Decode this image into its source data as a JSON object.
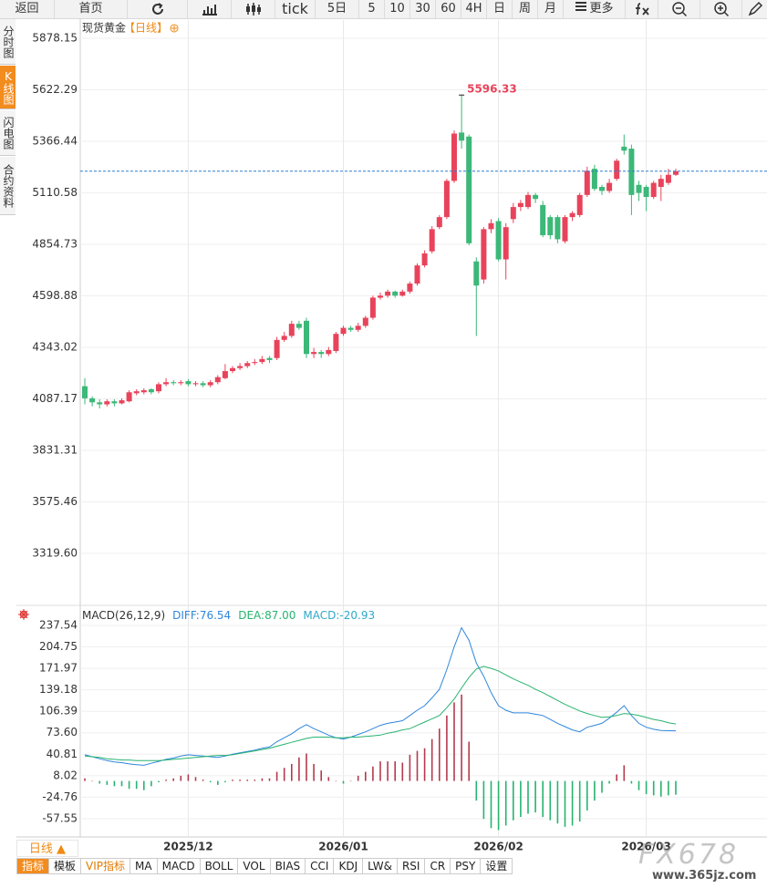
{
  "toolbar": [
    "返回",
    "首页",
    "tick",
    "5日",
    "5",
    "10",
    "30",
    "60",
    "4H",
    "日",
    "周",
    "月",
    "更多"
  ],
  "sidebar": [
    "分时图",
    "K线图",
    "闪电图",
    "合约资料"
  ],
  "period_button": "日线 ▲",
  "indicator_tabs": [
    "指标",
    "模板",
    "VIP指标",
    "MA",
    "MACD",
    "BOLL",
    "VOL",
    "BIAS",
    "CCI",
    "KDJ",
    "LW&",
    "RSI",
    "CR",
    "PSY",
    "设置"
  ],
  "watermark": [
    "FX678",
    "www.365jz.com"
  ],
  "chart_data": [
    {
      "type": "candlestick",
      "title": "现货黄金",
      "subtitle": "【日线】",
      "categories": [
        null,
        null,
        null,
        null,
        null,
        null,
        null,
        null,
        null,
        null,
        null,
        null,
        null,
        null,
        "2025/12",
        null,
        null,
        null,
        null,
        null,
        null,
        null,
        null,
        null,
        null,
        null,
        null,
        null,
        null,
        null,
        null,
        null,
        null,
        null,
        null,
        "2026/01",
        null,
        null,
        null,
        null,
        null,
        null,
        null,
        null,
        null,
        null,
        null,
        null,
        null,
        null,
        null,
        null,
        null,
        null,
        null,
        null,
        "2026/02",
        null,
        null,
        null,
        null,
        null,
        null,
        null,
        null,
        null,
        null,
        null,
        null,
        null,
        null,
        null,
        null,
        null,
        null,
        null,
        "2026/03",
        null,
        null,
        null,
        null
      ],
      "open": [
        4150,
        4090,
        4070,
        4060,
        4075,
        4065,
        4075,
        4115,
        4120,
        4135,
        4125,
        4160,
        4170,
        4165,
        4175,
        4160,
        4165,
        4155,
        4170,
        4190,
        4225,
        4240,
        4250,
        4265,
        4270,
        4290,
        4290,
        4380,
        4400,
        4460,
        4475,
        4310,
        4320,
        4310,
        4325,
        4410,
        4440,
        4430,
        4450,
        4490,
        4590,
        4600,
        4620,
        4600,
        4620,
        4660,
        4750,
        4820,
        4940,
        4990,
        5170,
        5410,
        5390,
        4770,
        4680,
        4930,
        4970,
        4780,
        4980,
        5040,
        5040,
        5100,
        5050,
        4990,
        4990,
        4870,
        4990,
        5000,
        5100,
        5230,
        5140,
        5120,
        5180,
        5340,
        5330,
        5150,
        5140,
        5090,
        5140,
        5160,
        5200
      ],
      "high": [
        4190,
        4100,
        4085,
        4085,
        4085,
        4090,
        4130,
        4135,
        4140,
        4140,
        4170,
        4190,
        4180,
        4180,
        4185,
        4175,
        4175,
        4180,
        4205,
        4260,
        4250,
        4265,
        4275,
        4285,
        4300,
        4300,
        4395,
        4420,
        4475,
        4475,
        4490,
        4340,
        4330,
        4345,
        4420,
        4450,
        4450,
        4465,
        4500,
        4600,
        4615,
        4630,
        4625,
        4630,
        4670,
        4760,
        4825,
        4945,
        5000,
        5180,
        5420,
        5596.33,
        5400,
        4790,
        4940,
        4980,
        4985,
        4960,
        5060,
        5075,
        5115,
        5110,
        5070,
        5000,
        5000,
        5000,
        5020,
        5110,
        5240,
        5250,
        5150,
        5180,
        5280,
        5400,
        5350,
        5170,
        5150,
        5170,
        5200,
        5230,
        5230
      ],
      "low": [
        4060,
        4050,
        4040,
        4050,
        4050,
        4060,
        4070,
        4105,
        4110,
        4110,
        4115,
        4150,
        4155,
        4155,
        4150,
        4150,
        4145,
        4145,
        4160,
        4185,
        4215,
        4230,
        4240,
        4255,
        4260,
        4265,
        4280,
        4370,
        4390,
        4430,
        4290,
        4290,
        4290,
        4300,
        4315,
        4400,
        4420,
        4420,
        4440,
        4480,
        4580,
        4590,
        4590,
        4595,
        4610,
        4650,
        4740,
        4810,
        4930,
        4980,
        5160,
        5330,
        4850,
        4400,
        4660,
        4910,
        4770,
        4680,
        4960,
        5020,
        5030,
        5060,
        4890,
        4880,
        4860,
        4860,
        4970,
        4990,
        5090,
        5120,
        5100,
        5110,
        5170,
        5300,
        5000,
        5070,
        5020,
        5080,
        5070,
        5150,
        5195
      ],
      "close": [
        4090,
        4070,
        4060,
        4075,
        4065,
        4080,
        4120,
        4125,
        4130,
        4120,
        4160,
        4170,
        4165,
        4170,
        4160,
        4165,
        4155,
        4170,
        4195,
        4225,
        4240,
        4250,
        4265,
        4270,
        4285,
        4280,
        4380,
        4400,
        4460,
        4440,
        4310,
        4320,
        4310,
        4330,
        4410,
        4440,
        4430,
        4450,
        4490,
        4590,
        4600,
        4620,
        4600,
        4620,
        4660,
        4750,
        4810,
        4930,
        4990,
        5170,
        5405,
        5370,
        4860,
        4650,
        4930,
        4960,
        4780,
        4940,
        5040,
        5060,
        5100,
        5080,
        4900,
        4900,
        4880,
        4990,
        5010,
        5100,
        5220,
        5130,
        5120,
        5160,
        5270,
        5320,
        5100,
        5110,
        5090,
        5160,
        5180,
        5200,
        5218
      ],
      "up_color": "#e8435b",
      "down_color": "#3cb878",
      "last_line_color": "#2f7fd1",
      "subtitle_color": "#f08a12",
      "ylim": [
        3066.0,
        5968.72
      ],
      "yticks": [
        5878.15,
        5622.29,
        5366.44,
        5110.58,
        4854.73,
        4598.88,
        4343.02,
        4087.17,
        3831.31,
        3575.46,
        {
          "value": 3319.6,
          "label": "3319.60"
        }
      ],
      "grid": true
    },
    {
      "type": "macd",
      "title": "MACD(26,12,9)",
      "series": [
        {
          "name": "DIFF:76.54",
          "kind": "line",
          "color": "#2f86dc",
          "values": [
            40,
            37,
            34,
            31,
            29,
            28,
            26,
            25,
            24,
            27,
            30,
            33,
            35,
            38,
            40,
            39,
            38,
            37,
            36,
            38,
            41,
            43,
            45,
            47,
            50,
            52,
            60,
            66,
            72,
            80,
            86,
            80,
            75,
            70,
            66,
            64,
            67,
            71,
            75,
            80,
            85,
            88,
            90,
            92,
            100,
            108,
            115,
            127,
            140,
            170,
            205,
            234,
            215,
            180,
            160,
            135,
            115,
            108,
            104,
            104,
            104,
            102,
            100,
            94,
            88,
            83,
            78,
            75,
            82,
            85,
            88,
            96,
            105,
            115,
            100,
            88,
            82,
            79,
            77,
            76.8,
            76.54
          ]
        },
        {
          "name": "DEA:87.00",
          "kind": "line",
          "color": "#27b36f",
          "values": [
            38,
            37,
            36,
            34,
            33,
            32,
            32,
            31,
            31,
            31,
            31,
            32,
            33,
            34,
            35,
            36,
            37,
            38,
            39,
            39,
            40,
            42,
            44,
            46,
            48,
            50,
            53,
            56,
            59,
            62,
            65,
            67,
            67,
            67,
            66,
            66,
            67,
            67,
            68,
            69,
            70,
            73,
            75,
            78,
            80,
            85,
            90,
            95,
            100,
            112,
            125,
            142,
            158,
            171,
            175,
            172,
            168,
            162,
            156,
            151,
            146,
            140,
            135,
            129,
            123,
            117,
            112,
            107,
            103,
            100,
            97,
            98,
            100,
            103,
            102,
            100,
            97,
            94,
            92,
            89,
            87
          ]
        },
        {
          "name": "MACD:-20.93",
          "kind": "bar",
          "color": "#2fa8c8",
          "up_color": "#b53a4e",
          "down_color": "#27b36f",
          "values": [
            4,
            0,
            -4,
            -6,
            -8,
            -8,
            -12,
            -12,
            -14,
            -8,
            -2,
            2,
            4,
            8,
            10,
            6,
            2,
            -2,
            -6,
            -2,
            2,
            2,
            2,
            2,
            4,
            4,
            14,
            20,
            26,
            36,
            42,
            26,
            16,
            6,
            0,
            -4,
            0,
            8,
            14,
            22,
            30,
            30,
            30,
            28,
            40,
            46,
            50,
            64,
            80,
            100,
            120,
            132,
            60,
            -30,
            -58,
            -72,
            -75,
            -68,
            -60,
            -55,
            -50,
            -48,
            -55,
            -60,
            -65,
            -70,
            -68,
            -62,
            -45,
            -30,
            -18,
            -4,
            10,
            24,
            -4,
            -14,
            -20,
            -22,
            -24,
            -22,
            -20.93
          ]
        }
      ],
      "ylim": [
        -81.3,
        245.9
      ],
      "yticks": [
        237.54,
        204.75,
        171.97,
        139.18,
        106.39,
        {
          "value": 73.6,
          "label": "73.60"
        },
        40.81,
        8.02,
        -24.76,
        -57.55
      ],
      "grid": true
    }
  ]
}
